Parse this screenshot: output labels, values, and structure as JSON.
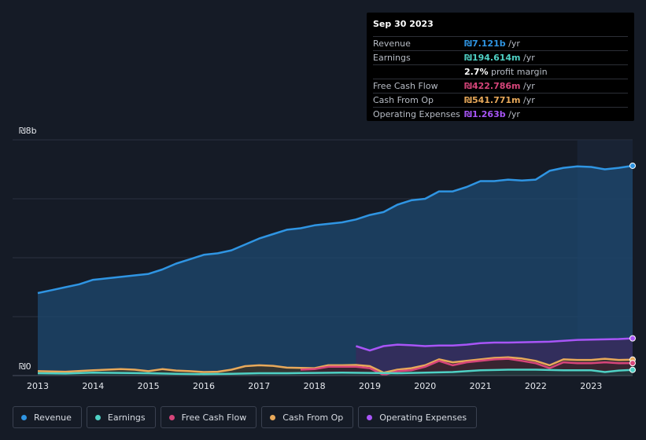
{
  "chart_data": {
    "type": "area",
    "currency_prefix": "₪",
    "y_axis": {
      "top_label": "₪8b",
      "bottom_label": "₪0",
      "ylim": [
        0,
        8
      ]
    },
    "x_ticks": [
      "2013",
      "2014",
      "2015",
      "2016",
      "2017",
      "2018",
      "2019",
      "2020",
      "2021",
      "2022",
      "2023"
    ],
    "xlim": [
      2013,
      2023.75
    ],
    "highlight_start": 2022.75,
    "series": [
      {
        "name": "Revenue",
        "color": "#2f95e3",
        "fill": "#1d4a70",
        "x": [
          2013,
          2013.25,
          2013.5,
          2013.75,
          2014,
          2014.25,
          2014.5,
          2014.75,
          2015,
          2015.25,
          2015.5,
          2015.75,
          2016,
          2016.25,
          2016.5,
          2016.75,
          2017,
          2017.25,
          2017.5,
          2017.75,
          2018,
          2018.25,
          2018.5,
          2018.75,
          2019,
          2019.25,
          2019.5,
          2019.75,
          2020,
          2020.25,
          2020.5,
          2020.75,
          2021,
          2021.25,
          2021.5,
          2021.75,
          2022,
          2022.25,
          2022.5,
          2022.75,
          2023,
          2023.25,
          2023.5,
          2023.75
        ],
        "values": [
          2.8,
          2.9,
          3.0,
          3.1,
          3.25,
          3.3,
          3.35,
          3.4,
          3.45,
          3.6,
          3.8,
          3.95,
          4.1,
          4.15,
          4.25,
          4.45,
          4.65,
          4.8,
          4.95,
          5.0,
          5.1,
          5.15,
          5.2,
          5.3,
          5.45,
          5.55,
          5.8,
          5.95,
          6.0,
          6.25,
          6.25,
          6.4,
          6.6,
          6.6,
          6.65,
          6.62,
          6.65,
          6.95,
          7.05,
          7.1,
          7.08,
          7.0,
          7.05,
          7.121
        ]
      },
      {
        "name": "Operating Expenses",
        "color": "#a855f7",
        "fill": "#3b2a5c",
        "x": [
          2018.75,
          2019,
          2019.25,
          2019.5,
          2019.75,
          2020,
          2020.25,
          2020.5,
          2020.75,
          2021,
          2021.25,
          2021.5,
          2021.75,
          2022,
          2022.25,
          2022.5,
          2022.75,
          2023,
          2023.25,
          2023.5,
          2023.75
        ],
        "values": [
          1.0,
          0.85,
          1.0,
          1.05,
          1.03,
          1.0,
          1.02,
          1.02,
          1.05,
          1.1,
          1.12,
          1.12,
          1.13,
          1.14,
          1.15,
          1.18,
          1.21,
          1.22,
          1.23,
          1.24,
          1.263
        ]
      },
      {
        "name": "Cash From Op",
        "color": "#e8a95a",
        "fill": "#3e3324",
        "x": [
          2013,
          2013.5,
          2014,
          2014.25,
          2014.5,
          2014.75,
          2015,
          2015.25,
          2015.5,
          2015.75,
          2016,
          2016.25,
          2016.5,
          2016.75,
          2017,
          2017.25,
          2017.5,
          2017.75,
          2018,
          2018.25,
          2018.5,
          2018.75,
          2019,
          2019.25,
          2019.5,
          2019.75,
          2020,
          2020.25,
          2020.5,
          2020.75,
          2021,
          2021.25,
          2021.5,
          2021.75,
          2022,
          2022.25,
          2022.5,
          2022.75,
          2023,
          2023.25,
          2023.5,
          2023.75
        ],
        "values": [
          0.15,
          0.13,
          0.18,
          0.2,
          0.22,
          0.2,
          0.15,
          0.22,
          0.17,
          0.15,
          0.12,
          0.13,
          0.2,
          0.32,
          0.35,
          0.33,
          0.27,
          0.26,
          0.25,
          0.35,
          0.35,
          0.36,
          0.32,
          0.1,
          0.2,
          0.25,
          0.35,
          0.55,
          0.45,
          0.5,
          0.55,
          0.6,
          0.62,
          0.58,
          0.5,
          0.35,
          0.55,
          0.53,
          0.53,
          0.57,
          0.53,
          0.541771
        ]
      },
      {
        "name": "Free Cash Flow",
        "color": "#d6457a",
        "fill": "#3a2030",
        "x": [
          2017.75,
          2018,
          2018.25,
          2018.5,
          2018.75,
          2019,
          2019.25,
          2019.5,
          2019.75,
          2020,
          2020.25,
          2020.5,
          2020.75,
          2021,
          2021.25,
          2021.5,
          2021.75,
          2022,
          2022.25,
          2022.5,
          2022.75,
          2023,
          2023.25,
          2023.5,
          2023.75
        ],
        "values": [
          0.2,
          0.22,
          0.3,
          0.3,
          0.3,
          0.25,
          0.02,
          0.15,
          0.18,
          0.3,
          0.5,
          0.35,
          0.45,
          0.5,
          0.55,
          0.57,
          0.5,
          0.42,
          0.25,
          0.45,
          0.42,
          0.42,
          0.45,
          0.42,
          0.422786
        ]
      },
      {
        "name": "Earnings",
        "color": "#4fd1c5",
        "fill": "#1b3b3d",
        "x": [
          2013,
          2013.5,
          2014,
          2014.5,
          2015,
          2015.5,
          2016,
          2016.5,
          2017,
          2017.5,
          2018,
          2018.5,
          2019,
          2019.5,
          2020,
          2020.5,
          2021,
          2021.5,
          2022,
          2022.5,
          2023,
          2023.25,
          2023.5,
          2023.75
        ],
        "values": [
          0.08,
          0.07,
          0.1,
          0.09,
          0.08,
          0.06,
          0.05,
          0.06,
          0.08,
          0.08,
          0.09,
          0.1,
          0.09,
          0.08,
          0.1,
          0.12,
          0.18,
          0.2,
          0.2,
          0.18,
          0.18,
          0.12,
          0.17,
          0.194614
        ]
      }
    ]
  },
  "tooltip": {
    "date": "Sep 30 2023",
    "rows": [
      {
        "label": "Revenue",
        "value": "₪7.121b",
        "unit": " /yr",
        "color": "#2f95e3"
      },
      {
        "label": "Earnings",
        "value": "₪194.614m",
        "unit": " /yr",
        "color": "#4fd1c5"
      },
      {
        "label": "",
        "value": "2.7%",
        "unit": " profit margin",
        "color": "#ffffff"
      },
      {
        "label": "Free Cash Flow",
        "value": "₪422.786m",
        "unit": " /yr",
        "color": "#d6457a"
      },
      {
        "label": "Cash From Op",
        "value": "₪541.771m",
        "unit": " /yr",
        "color": "#e8a95a"
      },
      {
        "label": "Operating Expenses",
        "value": "₪1.263b",
        "unit": " /yr",
        "color": "#a855f7"
      }
    ]
  },
  "legend": [
    {
      "label": "Revenue",
      "color": "#2f95e3"
    },
    {
      "label": "Earnings",
      "color": "#4fd1c5"
    },
    {
      "label": "Free Cash Flow",
      "color": "#d6457a"
    },
    {
      "label": "Cash From Op",
      "color": "#e8a95a"
    },
    {
      "label": "Operating Expenses",
      "color": "#a855f7"
    }
  ]
}
